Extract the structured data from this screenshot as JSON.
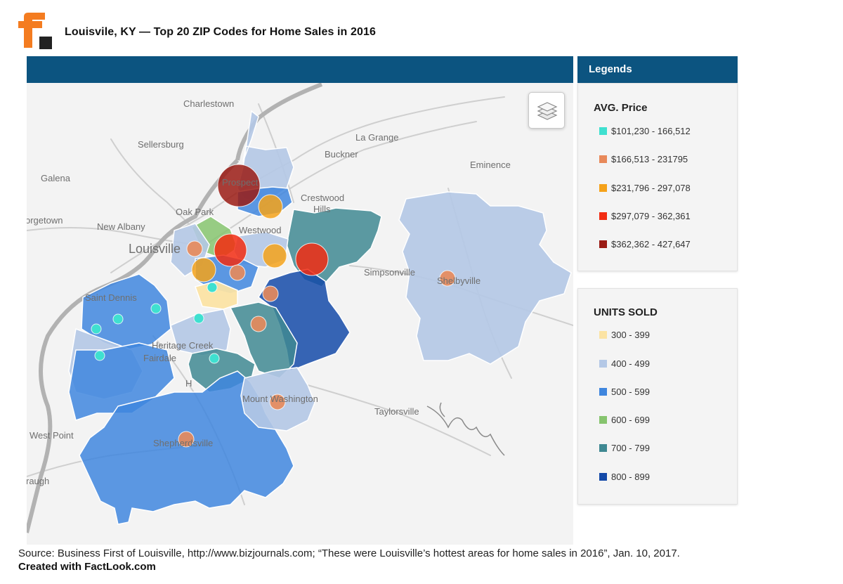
{
  "title": "Louisvile, KY — Top 20 ZIP Codes for Home Sales in 2016",
  "logo_icon": "factlook-f-logo",
  "map": {
    "header_color": "#0c5480",
    "layers_icon": "layers-icon",
    "places": [
      {
        "id": "charlestown",
        "name": "Charlestown"
      },
      {
        "id": "sellersburg",
        "name": "Sellersburg"
      },
      {
        "id": "la-grange",
        "name": "La Grange"
      },
      {
        "id": "buckner",
        "name": "Buckner"
      },
      {
        "id": "eminence",
        "name": "Eminence"
      },
      {
        "id": "galena",
        "name": "Galena"
      },
      {
        "id": "crestwood",
        "name": "Crestwood"
      },
      {
        "id": "oak-park",
        "name": "Oak Park"
      },
      {
        "id": "georgetown",
        "name": "orgetown"
      },
      {
        "id": "new-albany",
        "name": "New Albany"
      },
      {
        "id": "louisville",
        "name": "Louisville"
      },
      {
        "id": "prospect",
        "name": "Prospect"
      },
      {
        "id": "anchorage-hills",
        "name": "Hills"
      },
      {
        "id": "westwood",
        "name": "Westwood"
      },
      {
        "id": "simpsonville",
        "name": "Simpsonville"
      },
      {
        "id": "shelbyville",
        "name": "Shelbyville"
      },
      {
        "id": "saint-dennis",
        "name": "Saint Dennis"
      },
      {
        "id": "heritage-creek",
        "name": "Heritage Creek"
      },
      {
        "id": "fairdale",
        "name": "Fairdale"
      },
      {
        "id": "hillview",
        "name": "H"
      },
      {
        "id": "mount-washington",
        "name": "Mount Washington"
      },
      {
        "id": "taylorsville",
        "name": "Taylorsville"
      },
      {
        "id": "west-point",
        "name": "West Point"
      },
      {
        "id": "shepherdsville",
        "name": "Shepherdsville"
      },
      {
        "id": "vaugh",
        "name": "raugh"
      }
    ]
  },
  "legend": {
    "header": "Legends",
    "price_title": "AVG. Price",
    "price_items": [
      {
        "label": "$101,230 - 166,512",
        "color": "#3fe0d0"
      },
      {
        "label": "$166,513 - 231795",
        "color": "#e8895a"
      },
      {
        "label": "$231,796 - 297,078",
        "color": "#f5a21a"
      },
      {
        "label": "$297,079 - 362,361",
        "color": "#f22c12"
      },
      {
        "label": "$362,362 - 427,647",
        "color": "#9a1b14"
      }
    ],
    "units_title": "UNITS SOLD",
    "units_items": [
      {
        "label": "300 - 399",
        "color": "#fbe3a4"
      },
      {
        "label": "400 - 499",
        "color": "#b4c8e6"
      },
      {
        "label": "500 - 599",
        "color": "#3f86de"
      },
      {
        "label": "600 - 699",
        "color": "#86c46e"
      },
      {
        "label": "700 - 799",
        "color": "#3f8892"
      },
      {
        "label": "800 - 899",
        "color": "#144aa8"
      }
    ]
  },
  "source": "Source: Business First of Louisville, http://www.bizjournals.com; “These were Louisville’s hottest areas for home sales in 2016”, Jan. 10, 2017.",
  "credit": "Created with FactLook.com"
}
